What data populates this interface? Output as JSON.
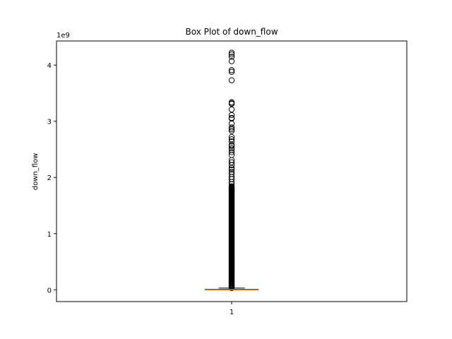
{
  "chart_data": {
    "type": "box",
    "title": "Box Plot of down_flow",
    "xlabel": "",
    "ylabel": "down_flow",
    "y_offset_label": "1e9",
    "categories": [
      "1"
    ],
    "yticks": [
      0,
      1,
      2,
      3,
      4
    ],
    "ylim": [
      -0.21,
      4.43
    ],
    "grid": false,
    "box": {
      "q1": 0.0,
      "median": 0.002,
      "q3": 0.01,
      "whisker_low": 0.0,
      "whisker_high": 0.03
    },
    "outliers_dense_range": [
      0.03,
      1.85
    ],
    "outliers": [
      4.22,
      4.19,
      4.15,
      4.07,
      3.91,
      3.88,
      3.73,
      3.34,
      3.32,
      3.31,
      3.21,
      3.11,
      3.06,
      3.05,
      2.96,
      2.89,
      2.86,
      2.83,
      2.72,
      2.68,
      2.64,
      2.58,
      2.56,
      2.52,
      2.49,
      2.45,
      2.4,
      2.31,
      2.27,
      2.22,
      2.17,
      2.14,
      2.1,
      2.06,
      2.01,
      1.97,
      1.92,
      1.88
    ],
    "colors": {
      "box": "#000000",
      "median": "#ff7f0e",
      "outlier": "#000000"
    }
  }
}
